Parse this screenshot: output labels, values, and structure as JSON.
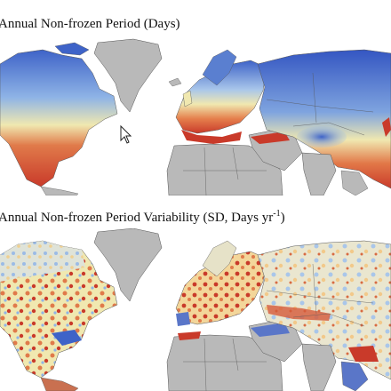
{
  "panels": {
    "top": {
      "title": "Annual Non-frozen Period (Days)",
      "scheme": "duration",
      "colors": {
        "long": "#c93a2a",
        "mid": "#f0e8b0",
        "short": "#3e63c8",
        "land_nodata": "#b9b9b9",
        "ocean": "#ffffff",
        "border": "#555555"
      }
    },
    "bottom": {
      "title_main": "Annual Non-frozen Period Variability (SD, Days yr",
      "title_sup": "-1",
      "title_end": ")",
      "scheme": "variability",
      "colors": {
        "high": "#c93a2a",
        "mid": "#f0e8b0",
        "low": "#5a76c8",
        "land_nodata": "#b9b9b9",
        "ocean": "#ffffff",
        "border": "#555555"
      }
    }
  },
  "cursor": {
    "icon": "arrow-cursor-icon"
  }
}
